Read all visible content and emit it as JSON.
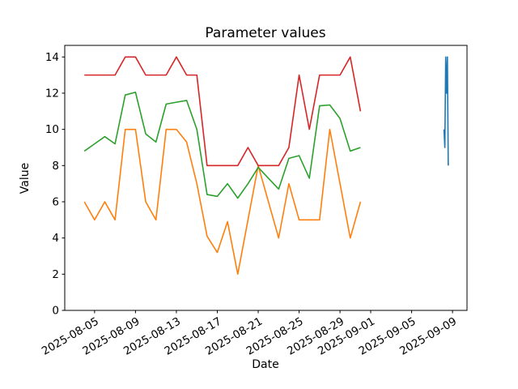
{
  "figure": {
    "title": "Parameter values",
    "xlabel": "Date",
    "ylabel": "Value"
  },
  "chart_data": {
    "type": "line",
    "title": "Parameter values",
    "xlabel": "Date",
    "ylabel": "Value",
    "grid": false,
    "legend": false,
    "background": "#ffffff",
    "axis_color": "#000000",
    "ylim": [
      0,
      14.64
    ],
    "xlim": [
      "2025-08-02T02:00",
      "2025-09-10T10:00"
    ],
    "y_ticks": [
      0,
      2,
      4,
      6,
      8,
      10,
      12,
      14
    ],
    "x_ticks": [
      "2025-08-05",
      "2025-08-09",
      "2025-08-13",
      "2025-08-17",
      "2025-08-21",
      "2025-08-25",
      "2025-08-29",
      "2025-09-01",
      "2025-09-05",
      "2025-09-09"
    ],
    "x_tick_rotation": 30,
    "series": [
      {
        "name": "blue",
        "color": "#1f77b4",
        "points": [
          [
            "2025-09-08T04:00",
            10
          ],
          [
            "2025-09-08T06:00",
            9
          ],
          [
            "2025-09-08T08:00",
            14
          ],
          [
            "2025-09-08T10:00",
            12
          ],
          [
            "2025-09-08T12:00",
            14
          ],
          [
            "2025-09-08T14:00",
            8
          ]
        ]
      },
      {
        "name": "orange",
        "color": "#ff7f0e",
        "points": [
          [
            "2025-08-04",
            6
          ],
          [
            "2025-08-05",
            5
          ],
          [
            "2025-08-06",
            6
          ],
          [
            "2025-08-07",
            5
          ],
          [
            "2025-08-08",
            10
          ],
          [
            "2025-08-09",
            10
          ],
          [
            "2025-08-10",
            6
          ],
          [
            "2025-08-11",
            5
          ],
          [
            "2025-08-12",
            10
          ],
          [
            "2025-08-13",
            10
          ],
          [
            "2025-08-14",
            9.3
          ],
          [
            "2025-08-15",
            7
          ],
          [
            "2025-08-16",
            4.1
          ],
          [
            "2025-08-17",
            3.2
          ],
          [
            "2025-08-18",
            4.9
          ],
          [
            "2025-08-19",
            2
          ],
          [
            "2025-08-20",
            5
          ],
          [
            "2025-08-21",
            8
          ],
          [
            "2025-08-22",
            6
          ],
          [
            "2025-08-23",
            4
          ],
          [
            "2025-08-24",
            7
          ],
          [
            "2025-08-25",
            5
          ],
          [
            "2025-08-26",
            5
          ],
          [
            "2025-08-27",
            5
          ],
          [
            "2025-08-28",
            10
          ],
          [
            "2025-08-29",
            7
          ],
          [
            "2025-08-30",
            4
          ],
          [
            "2025-08-31",
            6
          ]
        ]
      },
      {
        "name": "green",
        "color": "#2ca02c",
        "points": [
          [
            "2025-08-04",
            8.8
          ],
          [
            "2025-08-05",
            9.2
          ],
          [
            "2025-08-06",
            9.6
          ],
          [
            "2025-08-07",
            9.2
          ],
          [
            "2025-08-08",
            11.9
          ],
          [
            "2025-08-09",
            12.05
          ],
          [
            "2025-08-10",
            9.75
          ],
          [
            "2025-08-11",
            9.3
          ],
          [
            "2025-08-12",
            11.4
          ],
          [
            "2025-08-13",
            11.5
          ],
          [
            "2025-08-14",
            11.6
          ],
          [
            "2025-08-15",
            10.0
          ],
          [
            "2025-08-16",
            6.4
          ],
          [
            "2025-08-17",
            6.3
          ],
          [
            "2025-08-18",
            7.0
          ],
          [
            "2025-08-19",
            6.2
          ],
          [
            "2025-08-20",
            7.0
          ],
          [
            "2025-08-21",
            7.9
          ],
          [
            "2025-08-22",
            7.3
          ],
          [
            "2025-08-23",
            6.7
          ],
          [
            "2025-08-24",
            8.4
          ],
          [
            "2025-08-25",
            8.55
          ],
          [
            "2025-08-26",
            7.3
          ],
          [
            "2025-08-27",
            11.3
          ],
          [
            "2025-08-28",
            11.35
          ],
          [
            "2025-08-29",
            10.6
          ],
          [
            "2025-08-30",
            8.8
          ],
          [
            "2025-08-31",
            9.0
          ]
        ]
      },
      {
        "name": "red",
        "color": "#d62728",
        "points": [
          [
            "2025-08-04",
            13
          ],
          [
            "2025-08-05",
            13
          ],
          [
            "2025-08-06",
            13
          ],
          [
            "2025-08-07",
            13
          ],
          [
            "2025-08-08",
            14
          ],
          [
            "2025-08-09",
            14
          ],
          [
            "2025-08-10",
            13
          ],
          [
            "2025-08-11",
            13
          ],
          [
            "2025-08-12",
            13
          ],
          [
            "2025-08-13",
            14
          ],
          [
            "2025-08-14",
            13
          ],
          [
            "2025-08-15",
            13
          ],
          [
            "2025-08-16",
            8
          ],
          [
            "2025-08-17",
            8
          ],
          [
            "2025-08-18",
            8
          ],
          [
            "2025-08-19",
            8
          ],
          [
            "2025-08-20",
            9
          ],
          [
            "2025-08-21",
            8
          ],
          [
            "2025-08-22",
            8
          ],
          [
            "2025-08-23",
            8
          ],
          [
            "2025-08-24",
            9
          ],
          [
            "2025-08-25",
            13
          ],
          [
            "2025-08-26",
            10
          ],
          [
            "2025-08-27",
            13
          ],
          [
            "2025-08-28",
            13
          ],
          [
            "2025-08-29",
            13
          ],
          [
            "2025-08-30",
            14
          ],
          [
            "2025-08-31",
            11
          ]
        ]
      }
    ]
  }
}
